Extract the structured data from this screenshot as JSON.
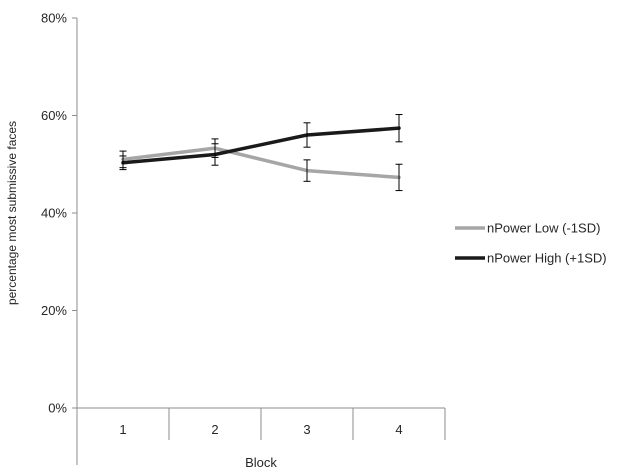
{
  "chart_data": {
    "type": "line",
    "xlabel": "Block",
    "ylabel": "percentage most submissive faces",
    "categories": [
      "1",
      "2",
      "3",
      "4"
    ],
    "ylim": [
      0,
      80
    ],
    "yticks": [
      0,
      20,
      40,
      60,
      80
    ],
    "ytick_labels": [
      "0%",
      "20%",
      "40%",
      "60%",
      "80%"
    ],
    "grid": false,
    "legend_position": "right",
    "series": [
      {
        "name": "nPower Low (-1SD)",
        "color": "#a6a6a6",
        "values": [
          51.0,
          53.3,
          48.7,
          47.3
        ],
        "errors": [
          1.7,
          1.9,
          2.2,
          2.7
        ]
      },
      {
        "name": "nPower High (+1SD)",
        "color": "#1a1a1a",
        "values": [
          50.3,
          52.0,
          56.0,
          57.4
        ],
        "errors": [
          1.4,
          2.2,
          2.5,
          2.8
        ]
      }
    ]
  }
}
